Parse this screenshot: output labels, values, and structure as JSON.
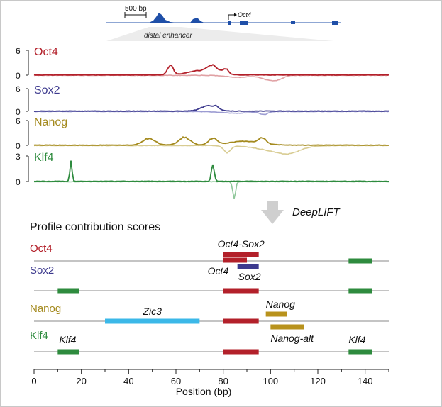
{
  "genome_track": {
    "scale_bar": "500 bp",
    "gene_label": "Oct4",
    "enhancer_label": "distal enhancer"
  },
  "profile_tracks": [
    {
      "name": "Oct4",
      "color": "#b3202a",
      "color_light": "#e0a1a4",
      "max_tick": "6",
      "zero_tick": "0"
    },
    {
      "name": "Sox2",
      "color": "#3d3a8e",
      "color_light": "#9c9cd2",
      "max_tick": "6",
      "zero_tick": "0"
    },
    {
      "name": "Nanog",
      "color": "#a48a1e",
      "color_light": "#d8cc92",
      "max_tick": "6",
      "zero_tick": "0"
    },
    {
      "name": "Klf4",
      "color": "#2e8b3e",
      "color_light": "#8fc79a",
      "max_tick": "3",
      "zero_tick": "0"
    }
  ],
  "deeplift_label": "DeepLIFT",
  "contribution_title": "Profile contribution scores",
  "chart_data": {
    "type": "bar",
    "x_range": [
      0,
      150
    ],
    "x_ticks": [
      "0",
      "20",
      "40",
      "60",
      "80",
      "100",
      "120",
      "140"
    ],
    "xlabel": "Position (bp)",
    "tracks": [
      {
        "name": "Oct4",
        "motifs": [
          {
            "label": "Oct4-Sox2",
            "start": 80,
            "end": 95,
            "color": "#b3202a",
            "row": "upper",
            "label_pos": "above"
          },
          {
            "label": "Oct4",
            "start": 80,
            "end": 90,
            "color": "#b3202a",
            "row": "lower",
            "label_pos": "below-left"
          },
          {
            "label": "Sox2",
            "start": 86,
            "end": 95,
            "color": "#3d3a8e",
            "row": "lower2",
            "label_pos": "below"
          },
          {
            "label": "",
            "start": 133,
            "end": 143,
            "color": "#2e8b3e",
            "row": "line",
            "label_pos": "none"
          }
        ]
      },
      {
        "name": "Sox2",
        "motifs": [
          {
            "label": "",
            "start": 10,
            "end": 19,
            "color": "#2e8b3e",
            "row": "line",
            "label_pos": "none"
          },
          {
            "label": "",
            "start": 80,
            "end": 95,
            "color": "#b3202a",
            "row": "line",
            "label_pos": "none"
          },
          {
            "label": "",
            "start": 133,
            "end": 143,
            "color": "#2e8b3e",
            "row": "line",
            "label_pos": "none"
          }
        ]
      },
      {
        "name": "Nanog",
        "motifs": [
          {
            "label": "Zic3",
            "start": 30,
            "end": 70,
            "color": "#3bb8e8",
            "row": "line",
            "label_pos": "above"
          },
          {
            "label": "",
            "start": 80,
            "end": 95,
            "color": "#b3202a",
            "row": "line",
            "label_pos": "none"
          },
          {
            "label": "Nanog",
            "start": 98,
            "end": 107,
            "color": "#b8921c",
            "row": "upper",
            "label_pos": "above"
          },
          {
            "label": "Nanog-alt",
            "start": 100,
            "end": 114,
            "color": "#b8921c",
            "row": "lower",
            "label_pos": "below"
          }
        ]
      },
      {
        "name": "Klf4",
        "motifs": [
          {
            "label": "Klf4",
            "start": 10,
            "end": 19,
            "color": "#2e8b3e",
            "row": "line",
            "label_pos": "above"
          },
          {
            "label": "",
            "start": 80,
            "end": 95,
            "color": "#b3202a",
            "row": "line",
            "label_pos": "none"
          },
          {
            "label": "Klf4",
            "start": 133,
            "end": 143,
            "color": "#2e8b3e",
            "row": "line",
            "label_pos": "above"
          }
        ]
      }
    ]
  }
}
